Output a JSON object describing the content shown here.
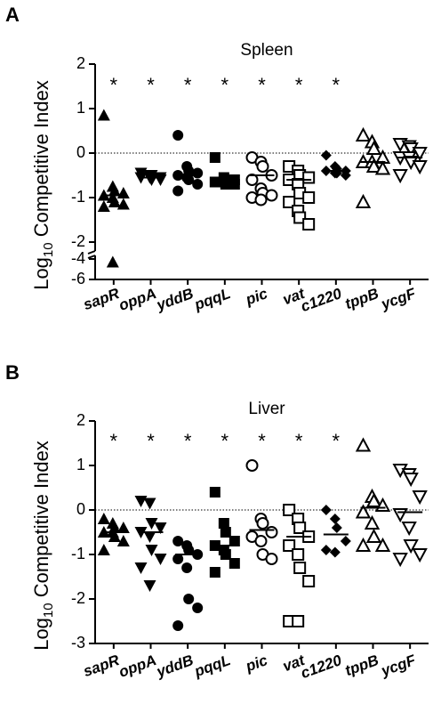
{
  "chart_data": [
    {
      "type": "strip",
      "panel": "A",
      "title": "Spleen",
      "ylabel": [
        "Log",
        "10",
        "Competitive Index"
      ],
      "categories": [
        "sapR",
        "oppA",
        "yddB",
        "pqqL",
        "pic",
        "vat",
        "c1220",
        "tppB",
        "ycgF"
      ],
      "markers": [
        "triangle",
        "down-triangle",
        "circle",
        "square",
        "open-circle",
        "open-square",
        "diamond",
        "open-triangle",
        "open-down-triangle"
      ],
      "points": [
        [
          0.85,
          -0.75,
          -0.85,
          -0.9,
          -0.95,
          -1.0,
          -1.1,
          -1.15,
          -1.2,
          -4.3
        ],
        [
          -0.45,
          -0.5,
          -0.5,
          -0.55,
          -0.55,
          -0.55,
          -0.6,
          -0.6
        ],
        [
          0.4,
          -0.3,
          -0.4,
          -0.45,
          -0.5,
          -0.55,
          -0.6,
          -0.7,
          -0.85
        ],
        [
          -0.1,
          -0.55,
          -0.6,
          -0.6,
          -0.65,
          -0.65,
          -0.7,
          -0.7
        ],
        [
          -0.1,
          -0.2,
          -0.3,
          -0.5,
          -0.6,
          -0.8,
          -0.9,
          -0.95,
          -1.0,
          -1.05
        ],
        [
          -0.3,
          -0.4,
          -0.5,
          -0.55,
          -0.6,
          -0.7,
          -0.9,
          -1.0,
          -1.1,
          -1.3,
          -1.45,
          -1.6
        ],
        [
          -0.05,
          -0.3,
          -0.35,
          -0.4,
          -0.4,
          -0.45,
          -0.45,
          -0.5
        ],
        [
          0.4,
          0.25,
          0.1,
          -0.1,
          -0.2,
          -0.2,
          -0.3,
          -0.35,
          -1.1
        ],
        [
          0.2,
          0.15,
          0.1,
          0.0,
          -0.1,
          -0.1,
          -0.2,
          -0.3,
          -0.5
        ]
      ],
      "medians": [
        -0.95,
        -0.55,
        -0.5,
        -0.65,
        -0.5,
        -0.6,
        -0.4,
        -0.2,
        -0.1
      ],
      "significance": [
        "*",
        "*",
        "*",
        "*",
        "*",
        "*",
        "*",
        null,
        null
      ],
      "ylim": [
        -6,
        2
      ],
      "y_break": [
        -4,
        -2
      ],
      "yticks": [
        2,
        1,
        0,
        -1,
        -2,
        -4,
        -6
      ],
      "reference_line": 0
    },
    {
      "type": "strip",
      "panel": "B",
      "title": "Liver",
      "ylabel": [
        "Log",
        "10",
        "Competitive Index"
      ],
      "categories": [
        "sapR",
        "oppA",
        "yddB",
        "pqqL",
        "pic",
        "vat",
        "c1220",
        "tppB",
        "ycgF"
      ],
      "markers": [
        "triangle",
        "down-triangle",
        "circle",
        "square",
        "open-circle",
        "open-square",
        "diamond",
        "open-triangle",
        "open-down-triangle"
      ],
      "points": [
        [
          -0.2,
          -0.3,
          -0.4,
          -0.4,
          -0.5,
          -0.5,
          -0.6,
          -0.7,
          -0.9
        ],
        [
          0.2,
          0.15,
          -0.3,
          -0.4,
          -0.5,
          -0.6,
          -0.9,
          -1.1,
          -1.3,
          -1.7
        ],
        [
          -0.7,
          -0.8,
          -0.9,
          -1.0,
          -1.1,
          -1.3,
          -2.0,
          -2.2,
          -2.6
        ],
        [
          0.4,
          -0.3,
          -0.5,
          -0.7,
          -0.8,
          -0.9,
          -1.0,
          -1.2,
          -1.4
        ],
        [
          1.0,
          -0.2,
          -0.3,
          -0.5,
          -0.6,
          -0.7,
          -1.0,
          -1.1
        ],
        [
          0.0,
          -0.2,
          -0.4,
          -0.6,
          -0.8,
          -1.0,
          -1.3,
          -1.6,
          -2.5,
          -2.5
        ],
        [
          0.0,
          -0.2,
          -0.4,
          -0.7,
          -0.9,
          -0.95
        ],
        [
          1.45,
          0.3,
          0.2,
          0.1,
          -0.05,
          -0.3,
          -0.6,
          -0.8,
          -0.8
        ],
        [
          0.9,
          0.8,
          0.7,
          0.3,
          -0.1,
          -0.4,
          -0.8,
          -1.0,
          -1.1
        ]
      ],
      "medians": [
        -0.5,
        -0.5,
        -1.0,
        -0.8,
        -0.45,
        -0.6,
        -0.55,
        0.05,
        -0.05
      ],
      "significance": [
        "*",
        "*",
        "*",
        "*",
        "*",
        "*",
        "*",
        null,
        null
      ],
      "ylim": [
        -3,
        2
      ],
      "yticks": [
        2,
        1,
        0,
        -1,
        -2,
        -3
      ],
      "reference_line": 0
    }
  ]
}
